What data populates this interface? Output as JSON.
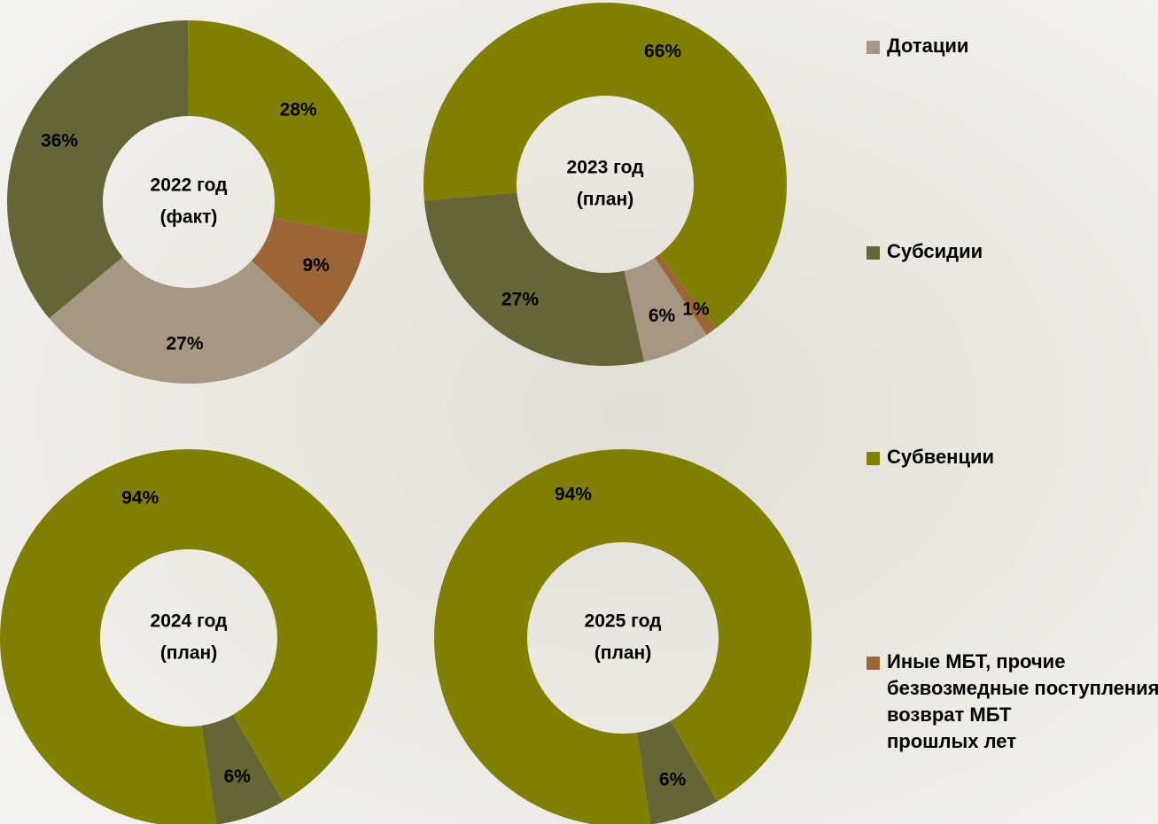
{
  "chart_data": [
    {
      "type": "pie",
      "title": [
        "2022 год",
        "(факт)"
      ],
      "categories": [
        "Дотации",
        "Субсидии",
        "Субвенции",
        "Иные МБТ, прочие безвозмедные поступления, возврат МБТ прошлых лет"
      ],
      "colors": [
        "#a59782",
        "#656535",
        "#808000",
        "#9c6535"
      ],
      "values": [
        27,
        36,
        28,
        9
      ],
      "value_labels": [
        "27%",
        "36%",
        "28%",
        "9%"
      ]
    },
    {
      "type": "pie",
      "title": [
        "2023 год",
        "(план)"
      ],
      "categories": [
        "Дотации",
        "Субсидии",
        "Субвенции",
        "Иные МБТ, прочие безвозмедные поступления, возврат МБТ прошлых лет"
      ],
      "colors": [
        "#a59782",
        "#656535",
        "#808000",
        "#9c6535"
      ],
      "values": [
        6,
        27,
        66,
        1
      ],
      "value_labels": [
        "6%",
        "27%",
        "66%",
        "1%"
      ]
    },
    {
      "type": "pie",
      "title": [
        "2024 год",
        "(план)"
      ],
      "categories": [
        "Дотации",
        "Субсидии",
        "Субвенции",
        "Иные МБТ, прочие безвозмедные поступления, возврат МБТ прошлых лет"
      ],
      "colors": [
        "#a59782",
        "#656535",
        "#808000",
        "#9c6535"
      ],
      "values": [
        null,
        6,
        94,
        null
      ],
      "value_labels": [
        null,
        "6%",
        "94%",
        null
      ]
    },
    {
      "type": "pie",
      "title": [
        "2025 год",
        "(план)"
      ],
      "categories": [
        "Дотации",
        "Субсидии",
        "Субвенции",
        "Иные МБТ, прочие безвозмедные поступления, возврат МБТ прошлых лет"
      ],
      "colors": [
        "#a59782",
        "#656535",
        "#808000",
        "#9c6535"
      ],
      "values": [
        null,
        6,
        94,
        null
      ],
      "value_labels": [
        null,
        "6%",
        "94%",
        null
      ]
    }
  ]
}
